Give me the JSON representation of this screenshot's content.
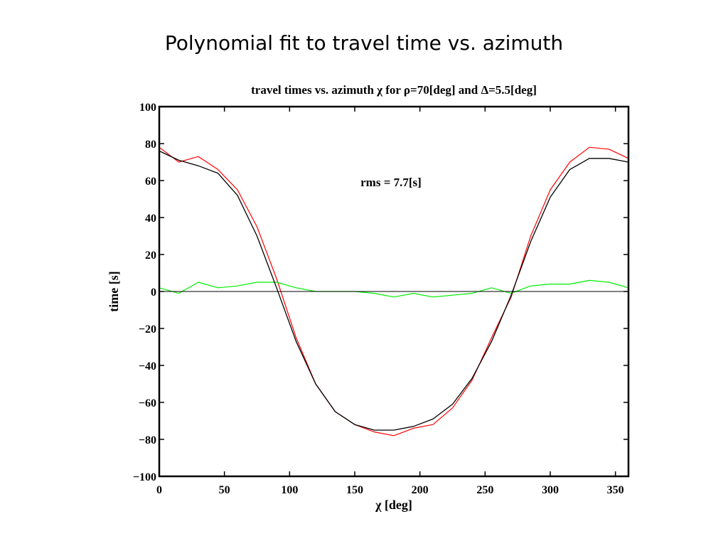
{
  "slide": {
    "title": "Polynomial fit to travel time vs. azimuth"
  },
  "chart_data": {
    "type": "line",
    "title": "travel times vs. azimuth χ for ρ=70[deg] and Δ=5.5[deg]",
    "xlabel": "χ [deg]",
    "ylabel": "time [s]",
    "xlim": [
      0,
      360
    ],
    "ylim": [
      -100,
      100
    ],
    "xticks": [
      0,
      50,
      100,
      150,
      200,
      250,
      300,
      350
    ],
    "yticks": [
      100,
      80,
      60,
      40,
      20,
      0,
      -20,
      -40,
      -60,
      -80,
      -100
    ],
    "ytick_labels": [
      "100",
      "80",
      "60",
      "40",
      "20",
      "0",
      "−20",
      "−40",
      "−60",
      "−80",
      "−100"
    ],
    "annotation": "rms = 7.7[s]",
    "grid": false,
    "x": [
      0,
      15,
      30,
      45,
      60,
      75,
      90,
      105,
      120,
      135,
      150,
      165,
      180,
      195,
      210,
      225,
      240,
      255,
      270,
      285,
      300,
      315,
      330,
      345,
      360
    ],
    "series": [
      {
        "key": "observed",
        "color": "#ff0000",
        "values": [
          78,
          70,
          73,
          66,
          55,
          35,
          7,
          -25,
          -50,
          -65,
          -72,
          -76,
          -78,
          -74,
          -72,
          -63,
          -48,
          -25,
          -3,
          30,
          55,
          70,
          78,
          77,
          72
        ]
      },
      {
        "key": "fit",
        "color": "#000000",
        "values": [
          76,
          71,
          68,
          64,
          52,
          30,
          2,
          -27,
          -50,
          -65,
          -72,
          -75,
          -75,
          -73,
          -69,
          -61,
          -47,
          -27,
          -2,
          27,
          51,
          66,
          72,
          72,
          70
        ]
      },
      {
        "key": "residual",
        "color": "#00ee00",
        "values": [
          2,
          -1,
          5,
          2,
          3,
          5,
          5,
          2,
          0,
          0,
          0,
          -1,
          -3,
          -1,
          -3,
          -2,
          -1,
          2,
          -1,
          3,
          4,
          4,
          6,
          5,
          2
        ]
      },
      {
        "key": "zero-line",
        "color": "#000000",
        "values": [
          0,
          0,
          0,
          0,
          0,
          0,
          0,
          0,
          0,
          0,
          0,
          0,
          0,
          0,
          0,
          0,
          0,
          0,
          0,
          0,
          0,
          0,
          0,
          0,
          0
        ]
      }
    ]
  }
}
